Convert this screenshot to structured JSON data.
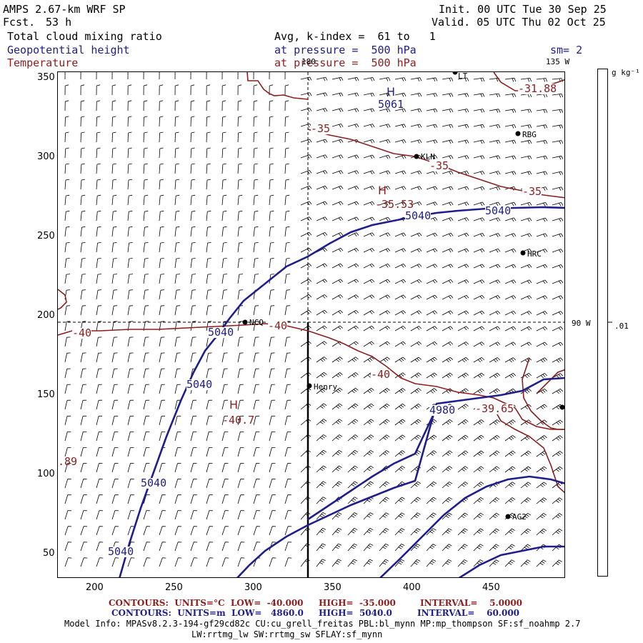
{
  "header": {
    "model": "AMPS 2.67-km WRF SP",
    "forecast_label": "Fcst.",
    "forecast_hours": "53 h",
    "init": "Init. 00 UTC Tue 30 Sep 25",
    "valid": "Valid. 05 UTC Thu 02 Oct 25",
    "field1": "Total cloud mixing ratio",
    "field1_info": "Avg, k-index =  61 to   1",
    "field2": "Geopotential height",
    "field2_info": "at pressure =  500 hPa",
    "field2_smoothing": "sm= 2",
    "field3": "Temperature",
    "field3_info": "at pressure =  500 hPa"
  },
  "map": {
    "x_ticks": [
      "200",
      "250",
      "300",
      "350",
      "400",
      "450"
    ],
    "y_ticks": [
      "350",
      "300",
      "250",
      "200",
      "150",
      "100",
      "50"
    ],
    "meridian_180": "180",
    "meridian_135w": "135 W",
    "meridian_90w": "90 W",
    "stations": [
      "LT",
      "RBG",
      "KLN",
      "HRC",
      "NCQ",
      "Henry",
      "AG2"
    ],
    "height_labels": [
      "5061",
      "5040",
      "5040",
      "5040",
      "5040",
      "5040",
      "5040",
      "4980"
    ],
    "height_highs": [
      "H"
    ],
    "temp_labels": [
      "-31.88",
      "-35",
      "-35",
      "-35",
      "-35.53",
      "-40",
      "-40",
      "-40",
      "-40.7",
      "-39.65",
      ".89"
    ],
    "temp_highs": [
      "H",
      "H"
    ],
    "colors": {
      "height": "#1e1e8c",
      "temperature": "#8c1e1e",
      "barb": "#000000"
    }
  },
  "colorbar": {
    "unit_label": "g kg⁻¹",
    "value": ".01"
  },
  "footer": {
    "temp_contours": "CONTOURS:  UNITS=°C  LOW=  -40.000",
    "temp_high": "HIGH=  -35.000",
    "temp_interval": "INTERVAL=    5.0000",
    "height_contours": "CONTOURS:  UNITS=m  LOW=   4860.0",
    "height_high": "HIGH=  5040.0",
    "height_interval": "INTERVAL=    60.000",
    "model_info": "Model Info: MPASv8.2.3-194-gf29cd82c CU:cu_grell_freitas PBL:bl_mynn MP:mp_thompson SF:sf_noahmp 2.7",
    "model_info2": "LW:rrtmg_lw SW:rrtmg_sw SFLAY:sf_mynn"
  }
}
